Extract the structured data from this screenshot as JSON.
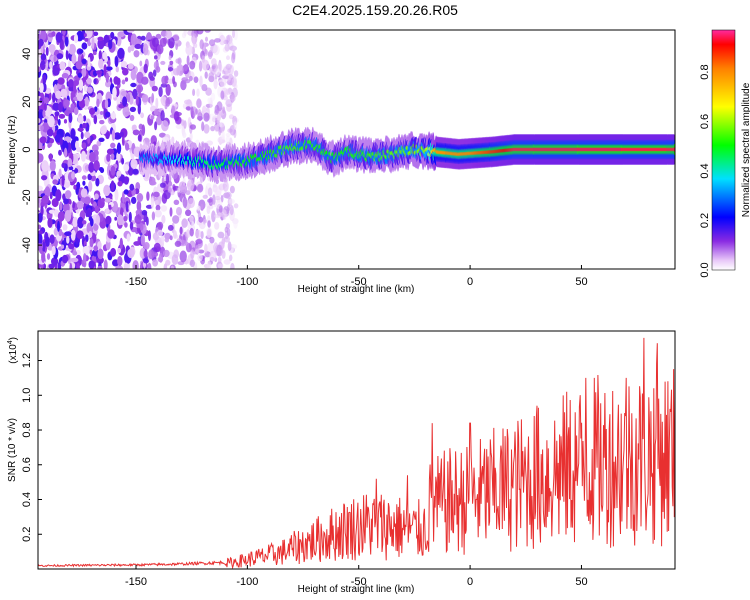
{
  "figure_title": "C2E4.2025.159.20.26.R05",
  "colors": {
    "snr_line": "#e83030",
    "spectrogram_background": "#ffffff",
    "ridge_high": "#e83030"
  },
  "chart_data": [
    {
      "id": "spectrogram",
      "type": "heatmap",
      "xlabel": "Height of straight line (km)",
      "ylabel": "Frequency (Hz)",
      "xlim": [
        -194,
        92
      ],
      "ylim": [
        -50,
        50
      ],
      "x_ticks": [
        -150,
        -100,
        -50,
        0,
        50
      ],
      "y_ticks": [
        -40,
        -20,
        0,
        20,
        40
      ],
      "colorbar": {
        "label": "Normalized spectral amplitude",
        "range": [
          0,
          0.97
        ],
        "ticks": [
          "0.0",
          "0.2",
          "0.4",
          "0.6",
          "0.8"
        ],
        "colormap": "rainbow"
      },
      "ridge_center_hz": [
        {
          "x": -145,
          "y": -4
        },
        {
          "x": -130,
          "y": -4
        },
        {
          "x": -115,
          "y": -6
        },
        {
          "x": -100,
          "y": -5
        },
        {
          "x": -90,
          "y": -2
        },
        {
          "x": -80,
          "y": 1
        },
        {
          "x": -70,
          "y": 2
        },
        {
          "x": -62,
          "y": -4
        },
        {
          "x": -55,
          "y": -1
        },
        {
          "x": -45,
          "y": -3
        },
        {
          "x": -35,
          "y": -2
        },
        {
          "x": -25,
          "y": 0
        },
        {
          "x": -15,
          "y": -1
        },
        {
          "x": -5,
          "y": -2
        },
        {
          "x": 10,
          "y": -1
        },
        {
          "x": 20,
          "y": 0
        },
        {
          "x": 40,
          "y": 0
        },
        {
          "x": 60,
          "y": 0
        },
        {
          "x": 92,
          "y": 0
        }
      ],
      "ridge_amplitude": [
        {
          "x": -145,
          "y": 0.3
        },
        {
          "x": -120,
          "y": 0.45
        },
        {
          "x": -100,
          "y": 0.5
        },
        {
          "x": -80,
          "y": 0.55
        },
        {
          "x": -60,
          "y": 0.5
        },
        {
          "x": -40,
          "y": 0.55
        },
        {
          "x": -20,
          "y": 0.6
        },
        {
          "x": -15,
          "y": 0.8
        },
        {
          "x": 0,
          "y": 0.82
        },
        {
          "x": 20,
          "y": 0.95
        },
        {
          "x": 92,
          "y": 0.95
        }
      ]
    },
    {
      "id": "snr",
      "type": "line",
      "xlabel": "Height of straight line (km)",
      "ylabel": "SNR (10 * v/v)",
      "y_multiplier_label": "(x10",
      "y_multiplier_exp": "4",
      "xlim": [
        -194,
        92
      ],
      "ylim": [
        0,
        1.37
      ],
      "x_ticks": [
        -150,
        -100,
        -50,
        0,
        50
      ],
      "y_ticks": [
        0.2,
        0.4,
        0.6,
        0.8,
        1.0,
        1.2
      ],
      "envelope": [
        {
          "x": -194,
          "y": 0.02
        },
        {
          "x": -150,
          "y": 0.025
        },
        {
          "x": -130,
          "y": 0.03
        },
        {
          "x": -110,
          "y": 0.04
        },
        {
          "x": -100,
          "y": 0.07
        },
        {
          "x": -85,
          "y": 0.12
        },
        {
          "x": -75,
          "y": 0.18
        },
        {
          "x": -65,
          "y": 0.24
        },
        {
          "x": -55,
          "y": 0.3
        },
        {
          "x": -45,
          "y": 0.33
        },
        {
          "x": -35,
          "y": 0.32
        },
        {
          "x": -25,
          "y": 0.28
        },
        {
          "x": -20,
          "y": 0.3
        },
        {
          "x": -18,
          "y": 0.45
        },
        {
          "x": -10,
          "y": 0.5
        },
        {
          "x": 0,
          "y": 0.52
        },
        {
          "x": 10,
          "y": 0.58
        },
        {
          "x": 25,
          "y": 0.65
        },
        {
          "x": 40,
          "y": 0.72
        },
        {
          "x": 55,
          "y": 0.8
        },
        {
          "x": 70,
          "y": 0.82
        },
        {
          "x": 80,
          "y": 0.85
        },
        {
          "x": 92,
          "y": 0.85
        }
      ],
      "peaks": [
        {
          "x": -42,
          "y": 0.52
        },
        {
          "x": -28,
          "y": 0.54
        },
        {
          "x": -17,
          "y": 0.84
        },
        {
          "x": 0,
          "y": 0.84
        },
        {
          "x": 30,
          "y": 0.94
        },
        {
          "x": 52,
          "y": 1.1
        },
        {
          "x": 70,
          "y": 1.1
        },
        {
          "x": 78,
          "y": 1.33
        },
        {
          "x": 84,
          "y": 1.3
        },
        {
          "x": 92,
          "y": 1.0
        }
      ]
    }
  ]
}
